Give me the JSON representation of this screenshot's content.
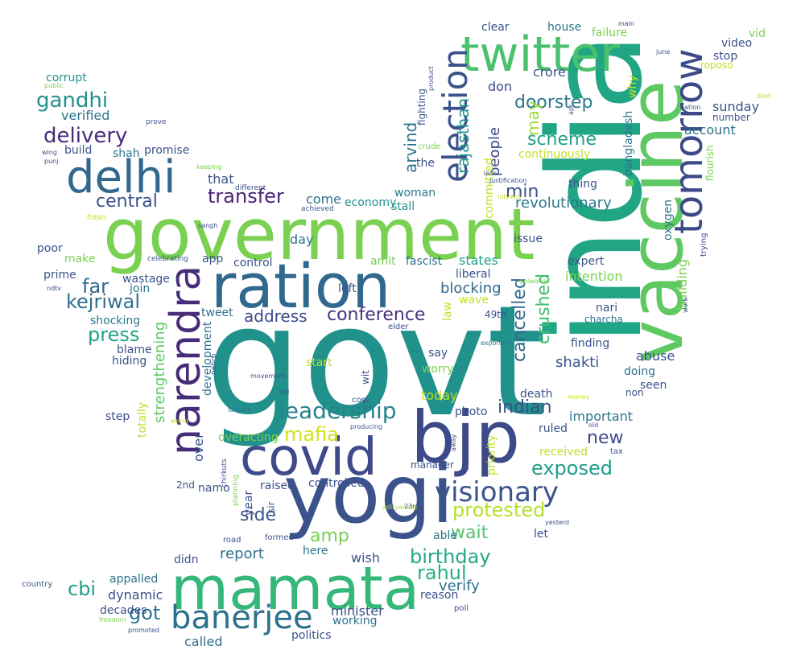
{
  "palette": {
    "purple": "#440154",
    "indigo": "#472c7a",
    "violet": "#3b528b",
    "blue": "#2c728e",
    "teal": "#21918c",
    "sea": "#28ae80",
    "green": "#5ec962",
    "lime": "#addc30",
    "yellow": "#d8e219"
  },
  "words": [
    {
      "text": "govt",
      "color": "#21918c",
      "font_weight": 400
    },
    {
      "text": "government",
      "color": "#7ad151",
      "font_weight": 400
    },
    {
      "text": "india",
      "color": "#21a685",
      "font_weight": 400
    },
    {
      "text": "ration",
      "color": "#31688e",
      "font_weight": 400
    },
    {
      "text": "yogi",
      "color": "#3b528b",
      "font_weight": 400
    },
    {
      "text": "bjp",
      "color": "#3e4989",
      "font_weight": 400
    },
    {
      "text": "vaccine",
      "color": "#5ec962",
      "font_weight": 400
    },
    {
      "text": "mamata",
      "color": "#35b779",
      "font_weight": 400
    },
    {
      "text": "covid",
      "color": "#3e4a89",
      "font_weight": 400
    },
    {
      "text": "twitter",
      "color": "#4ac16d",
      "font_weight": 400
    },
    {
      "text": "narendra",
      "color": "#472c7a",
      "font_weight": 400
    },
    {
      "text": "delhi",
      "color": "#31688e",
      "font_weight": 400
    },
    {
      "text": "tomorrow",
      "color": "#3e4989",
      "font_weight": 400
    },
    {
      "text": "election",
      "color": "#3b528b",
      "font_weight": 400
    },
    {
      "text": "banerjee",
      "color": "#2c728e",
      "font_weight": 400
    },
    {
      "text": "visionary",
      "color": "#3b528b",
      "font_weight": 400
    },
    {
      "text": "leadership",
      "color": "#26828e",
      "font_weight": 400
    },
    {
      "text": "delivery",
      "color": "#472c7a",
      "font_weight": 400
    },
    {
      "text": "gandhi",
      "color": "#21918c",
      "font_weight": 400
    },
    {
      "text": "transfer",
      "color": "#482475",
      "font_weight": 400
    },
    {
      "text": "kejriwal",
      "color": "#2d708e",
      "font_weight": 400
    },
    {
      "text": "protested",
      "color": "#b5de2b",
      "font_weight": 400
    },
    {
      "text": "doorstep",
      "color": "#2a788e",
      "font_weight": 400
    },
    {
      "text": "scheme",
      "color": "#1fa187",
      "font_weight": 400
    },
    {
      "text": "mafia",
      "color": "#d0e11c",
      "font_weight": 400
    },
    {
      "text": "conference",
      "color": "#46337e",
      "font_weight": 400
    },
    {
      "text": "press",
      "color": "#20a386",
      "font_weight": 400
    },
    {
      "text": "central",
      "color": "#3b528b",
      "font_weight": 400
    },
    {
      "text": "birthday",
      "color": "#22a884",
      "font_weight": 400
    },
    {
      "text": "exposed",
      "color": "#1f9e89",
      "font_weight": 400
    },
    {
      "text": "rahul",
      "color": "#2ab07f",
      "font_weight": 400
    },
    {
      "text": "indian",
      "color": "#3b528b",
      "font_weight": 400
    },
    {
      "text": "crushed",
      "color": "#44bf70",
      "font_weight": 400
    },
    {
      "text": "cancelled",
      "color": "#31688e",
      "font_weight": 400
    },
    {
      "text": "rajasthan",
      "color": "#1f988b",
      "font_weight": 400
    },
    {
      "text": "arvind",
      "color": "#2c728e",
      "font_weight": 400
    },
    {
      "text": "people",
      "color": "#3e4a89",
      "font_weight": 400
    },
    {
      "text": "may",
      "color": "#a0da39",
      "font_weight": 400
    },
    {
      "text": "min",
      "color": "#3b528b",
      "font_weight": 400
    },
    {
      "text": "far",
      "color": "#31688e",
      "font_weight": 400
    },
    {
      "text": "cbi",
      "color": "#1f9e89",
      "font_weight": 400
    },
    {
      "text": "got",
      "color": "#2c728e",
      "font_weight": 400
    },
    {
      "text": "wait",
      "color": "#52c569",
      "font_weight": 400
    },
    {
      "text": "new",
      "color": "#3e4a89",
      "font_weight": 400
    },
    {
      "text": "side",
      "color": "#3b528b",
      "font_weight": 400
    },
    {
      "text": "amp",
      "color": "#7ad151",
      "font_weight": 400
    },
    {
      "text": "address",
      "color": "#3e4a89",
      "font_weight": 400
    },
    {
      "text": "report",
      "color": "#2c728e",
      "font_weight": 400
    },
    {
      "text": "revolutionary",
      "color": "#2a788e",
      "font_weight": 400
    },
    {
      "text": "blocking",
      "color": "#31688e",
      "font_weight": 400
    },
    {
      "text": "shakti",
      "color": "#3b528b",
      "font_weight": 400
    },
    {
      "text": "verify",
      "color": "#2c728e",
      "font_weight": 400
    },
    {
      "text": "strengthening",
      "color": "#5ec962",
      "font_weight": 400
    },
    {
      "text": "crore",
      "color": "#3b528b",
      "font_weight": 400
    },
    {
      "text": "don",
      "color": "#3e4989",
      "font_weight": 400
    },
    {
      "text": "sunday",
      "color": "#3b528b",
      "font_weight": 400
    },
    {
      "text": "account",
      "color": "#2c728e",
      "font_weight": 400
    },
    {
      "text": "intention",
      "color": "#7ad151",
      "font_weight": 400
    },
    {
      "text": "states",
      "color": "#1f9e89",
      "font_weight": 400
    },
    {
      "text": "verified",
      "color": "#2c728e",
      "font_weight": 400
    },
    {
      "text": "build",
      "color": "#3b528b",
      "font_weight": 400
    },
    {
      "text": "shah",
      "color": "#2a788e",
      "font_weight": 400
    },
    {
      "text": "promise",
      "color": "#3b528b",
      "font_weight": 400
    },
    {
      "text": "that",
      "color": "#3b528b",
      "font_weight": 400
    },
    {
      "text": "come",
      "color": "#2c728e",
      "font_weight": 400
    },
    {
      "text": "economy",
      "color": "#21918c",
      "font_weight": 400
    },
    {
      "text": "woman",
      "color": "#2a788e",
      "font_weight": 400
    },
    {
      "text": "stall",
      "color": "#21918c",
      "font_weight": 400
    },
    {
      "text": "day",
      "color": "#2c728e",
      "font_weight": 400
    },
    {
      "text": "make",
      "color": "#7ad151",
      "font_weight": 400
    },
    {
      "text": "poor",
      "color": "#3b528b",
      "font_weight": 400
    },
    {
      "text": "corrupt",
      "color": "#21918c",
      "font_weight": 400
    },
    {
      "text": "prime",
      "color": "#3b528b",
      "font_weight": 400
    },
    {
      "text": "wastage",
      "color": "#3b528b",
      "font_weight": 400
    },
    {
      "text": "join",
      "color": "#2c728e",
      "font_weight": 400
    },
    {
      "text": "tweet",
      "color": "#2c728e",
      "font_weight": 400
    },
    {
      "text": "shocking",
      "color": "#2a788e",
      "font_weight": 400
    },
    {
      "text": "blame",
      "color": "#3b528b",
      "font_weight": 400
    },
    {
      "text": "hiding",
      "color": "#3b528b",
      "font_weight": 400
    },
    {
      "text": "app",
      "color": "#3b528b",
      "font_weight": 400
    },
    {
      "text": "control",
      "color": "#3b528b",
      "font_weight": 400
    },
    {
      "text": "amit",
      "color": "#7ad151",
      "font_weight": 400
    },
    {
      "text": "fascist",
      "color": "#2c728e",
      "font_weight": 400
    },
    {
      "text": "liberal",
      "color": "#3b528b",
      "font_weight": 400
    },
    {
      "text": "left",
      "color": "#3b528b",
      "font_weight": 400
    },
    {
      "text": "wave",
      "color": "#c2df23",
      "font_weight": 400
    },
    {
      "text": "nari",
      "color": "#3b528b",
      "font_weight": 400
    },
    {
      "text": "charcha",
      "color": "#2c728e",
      "font_weight": 400
    },
    {
      "text": "finding",
      "color": "#3b528b",
      "font_weight": 400
    },
    {
      "text": "abuse",
      "color": "#3b528b",
      "font_weight": 400
    },
    {
      "text": "doing",
      "color": "#2c728e",
      "font_weight": 400
    },
    {
      "text": "seen",
      "color": "#3b528b",
      "font_weight": 400
    },
    {
      "text": "non",
      "color": "#3b528b",
      "font_weight": 400
    },
    {
      "text": "building",
      "color": "#7ad151",
      "font_weight": 400
    },
    {
      "text": "oxygen",
      "color": "#2c728e",
      "font_weight": 400
    },
    {
      "text": "bangladesh",
      "color": "#2a788e",
      "font_weight": 400
    },
    {
      "text": "why",
      "color": "#c2df23",
      "font_weight": 400
    },
    {
      "text": "thing",
      "color": "#3b528b",
      "font_weight": 400
    },
    {
      "text": "house",
      "color": "#2c728e",
      "font_weight": 400
    },
    {
      "text": "failure",
      "color": "#7ad151",
      "font_weight": 400
    },
    {
      "text": "clear",
      "color": "#3b528b",
      "font_weight": 400
    },
    {
      "text": "continuously",
      "color": "#c2df23",
      "font_weight": 400
    },
    {
      "text": "committed",
      "color": "#c2df23",
      "font_weight": 400
    },
    {
      "text": "issue",
      "color": "#3b528b",
      "font_weight": 400
    },
    {
      "text": "expert",
      "color": "#3b528b",
      "font_weight": 400
    },
    {
      "text": "the",
      "color": "#3b528b",
      "font_weight": 400
    },
    {
      "text": "fighting",
      "color": "#3b528b",
      "font_weight": 400
    },
    {
      "text": "crude",
      "color": "#7ad151",
      "font_weight": 400
    },
    {
      "text": "stop",
      "color": "#3b528b",
      "font_weight": 400
    },
    {
      "text": "video",
      "color": "#3b528b",
      "font_weight": 400
    },
    {
      "text": "vid",
      "color": "#7ad151",
      "font_weight": 400
    },
    {
      "text": "roposo",
      "color": "#c2df23",
      "font_weight": 400
    },
    {
      "text": "flourish",
      "color": "#7ad151",
      "font_weight": 400
    },
    {
      "text": "trying",
      "color": "#3b528b",
      "font_weight": 400
    },
    {
      "text": "number",
      "color": "#3b528b",
      "font_weight": 400
    },
    {
      "text": "important",
      "color": "#2c728e",
      "font_weight": 400
    },
    {
      "text": "ruled",
      "color": "#3b528b",
      "font_weight": 400
    },
    {
      "text": "received",
      "color": "#c2df23",
      "font_weight": 400
    },
    {
      "text": "priority",
      "color": "#c2df23",
      "font_weight": 400
    },
    {
      "text": "today",
      "color": "#c2df23",
      "font_weight": 400
    },
    {
      "text": "photo",
      "color": "#3b528b",
      "font_weight": 400
    },
    {
      "text": "say",
      "color": "#3b528b",
      "font_weight": 400
    },
    {
      "text": "worry",
      "color": "#7ad151",
      "font_weight": 400
    },
    {
      "text": "law",
      "color": "#c2df23",
      "font_weight": 400
    },
    {
      "text": "start",
      "color": "#c2df23",
      "font_weight": 400
    },
    {
      "text": "49th",
      "color": "#3b528b",
      "font_weight": 400
    },
    {
      "text": "death",
      "color": "#3b528b",
      "font_weight": 400
    },
    {
      "text": "manager",
      "color": "#3b528b",
      "font_weight": 400
    },
    {
      "text": "controlled",
      "color": "#3b528b",
      "font_weight": 400
    },
    {
      "text": "raised",
      "color": "#3b528b",
      "font_weight": 400
    },
    {
      "text": "overacting",
      "color": "#7ad151",
      "font_weight": 400
    },
    {
      "text": "over",
      "color": "#3b528b",
      "font_weight": 400
    },
    {
      "text": "namo",
      "color": "#3b528b",
      "font_weight": 400
    },
    {
      "text": "2nd",
      "color": "#3b528b",
      "font_weight": 400
    },
    {
      "text": "year",
      "color": "#3b528b",
      "font_weight": 400
    },
    {
      "text": "sir",
      "color": "#3b528b",
      "font_weight": 400
    },
    {
      "text": "let",
      "color": "#3b528b",
      "font_weight": 400
    },
    {
      "text": "able",
      "color": "#2c728e",
      "font_weight": 400
    },
    {
      "text": "wish",
      "color": "#3b528b",
      "font_weight": 400
    },
    {
      "text": "here",
      "color": "#2c728e",
      "font_weight": 400
    },
    {
      "text": "didn",
      "color": "#3b528b",
      "font_weight": 400
    },
    {
      "text": "dynamic",
      "color": "#3b528b",
      "font_weight": 400
    },
    {
      "text": "appalled",
      "color": "#2c728e",
      "font_weight": 400
    },
    {
      "text": "decades",
      "color": "#3b528b",
      "font_weight": 400
    },
    {
      "text": "called",
      "color": "#2c728e",
      "font_weight": 400
    },
    {
      "text": "minister",
      "color": "#3b528b",
      "font_weight": 400
    },
    {
      "text": "working",
      "color": "#2c728e",
      "font_weight": 400
    },
    {
      "text": "politics",
      "color": "#3b528b",
      "font_weight": 400
    },
    {
      "text": "reason",
      "color": "#3b528b",
      "font_weight": 400
    },
    {
      "text": "poll",
      "color": "#3b528b",
      "font_weight": 400
    },
    {
      "text": "step",
      "color": "#3b528b",
      "font_weight": 400
    },
    {
      "text": "totally",
      "color": "#c2df23",
      "font_weight": 400
    },
    {
      "text": "development",
      "color": "#2c728e",
      "font_weight": 400
    },
    {
      "text": "wit",
      "color": "#3b528b",
      "font_weight": 400
    },
    {
      "text": "cost",
      "color": "#3b528b",
      "font_weight": 400
    },
    {
      "text": "elder",
      "color": "#3b528b",
      "font_weight": 400
    },
    {
      "text": "movement",
      "color": "#3b528b",
      "font_weight": 400
    },
    {
      "text": "3rd",
      "color": "#3b528b",
      "font_weight": 400
    },
    {
      "text": "largest",
      "color": "#2c728e",
      "font_weight": 400
    },
    {
      "text": "producing",
      "color": "#3b528b",
      "font_weight": 400
    },
    {
      "text": "chirkuts",
      "color": "#3b528b",
      "font_weight": 400
    },
    {
      "text": "planning",
      "color": "#7ad151",
      "font_weight": 400
    },
    {
      "text": "adityanath",
      "color": "#c2df23",
      "font_weight": 400
    },
    {
      "text": "23rd",
      "color": "#3b528b",
      "font_weight": 400
    },
    {
      "text": "road",
      "color": "#3b528b",
      "font_weight": 400
    },
    {
      "text": "formed",
      "color": "#3b528b",
      "font_weight": 400
    },
    {
      "text": "yesterd",
      "color": "#3b528b",
      "font_weight": 400
    },
    {
      "text": "tax",
      "color": "#3b528b",
      "font_weight": 400
    },
    {
      "text": "old",
      "color": "#3b528b",
      "font_weight": 400
    },
    {
      "text": "money",
      "color": "#c2df23",
      "font_weight": 400
    },
    {
      "text": "exported",
      "color": "#2c728e",
      "font_weight": 400
    },
    {
      "text": "away",
      "color": "#3b528b",
      "font_weight": 400
    },
    {
      "text": "archive",
      "color": "#3b528b",
      "font_weight": 400
    },
    {
      "text": "world",
      "color": "#c2df23",
      "font_weight": 400
    },
    {
      "text": "nehru",
      "color": "#3b528b",
      "font_weight": 400
    },
    {
      "text": "celebrating",
      "color": "#3b528b",
      "font_weight": 400
    },
    {
      "text": "ndtv",
      "color": "#3b528b",
      "font_weight": 400
    },
    {
      "text": "hasn",
      "color": "#c2df23",
      "font_weight": 400
    },
    {
      "text": "sangh",
      "color": "#3b528b",
      "font_weight": 400
    },
    {
      "text": "achieved",
      "color": "#3b528b",
      "font_weight": 400
    },
    {
      "text": "different",
      "color": "#3b528b",
      "font_weight": 400
    },
    {
      "text": "keeping",
      "color": "#7ad151",
      "font_weight": 400
    },
    {
      "text": "punj",
      "color": "#3b528b",
      "font_weight": 400
    },
    {
      "text": "wing",
      "color": "#3b528b",
      "font_weight": 400
    },
    {
      "text": "prove",
      "color": "#3b528b",
      "font_weight": 400
    },
    {
      "text": "public",
      "color": "#7ad151",
      "font_weight": 400
    },
    {
      "text": "country",
      "color": "#3b528b",
      "font_weight": 400
    },
    {
      "text": "freedom",
      "color": "#7ad151",
      "font_weight": 400
    },
    {
      "text": "promoted",
      "color": "#3b528b",
      "font_weight": 400
    },
    {
      "text": "golwalkar",
      "color": "#7ad151",
      "font_weight": 400
    },
    {
      "text": "work",
      "color": "#3b528b",
      "font_weight": 400
    },
    {
      "text": "nation",
      "color": "#3b528b",
      "font_weight": 400
    },
    {
      "text": "died",
      "color": "#c2df23",
      "font_weight": 400
    },
    {
      "text": "main",
      "color": "#3b528b",
      "font_weight": 400
    },
    {
      "text": "june",
      "color": "#3b528b",
      "font_weight": 400
    },
    {
      "text": "product",
      "color": "#3b528b",
      "font_weight": 400
    },
    {
      "text": "apr",
      "color": "#3b528b",
      "font_weight": 400
    },
    {
      "text": "justification",
      "color": "#3b528b",
      "font_weight": 400
    },
    {
      "text": "lack",
      "color": "#3b528b",
      "font_weight": 400
    },
    {
      "text": "lutyens",
      "color": "#c2df23",
      "font_weight": 400
    }
  ]
}
